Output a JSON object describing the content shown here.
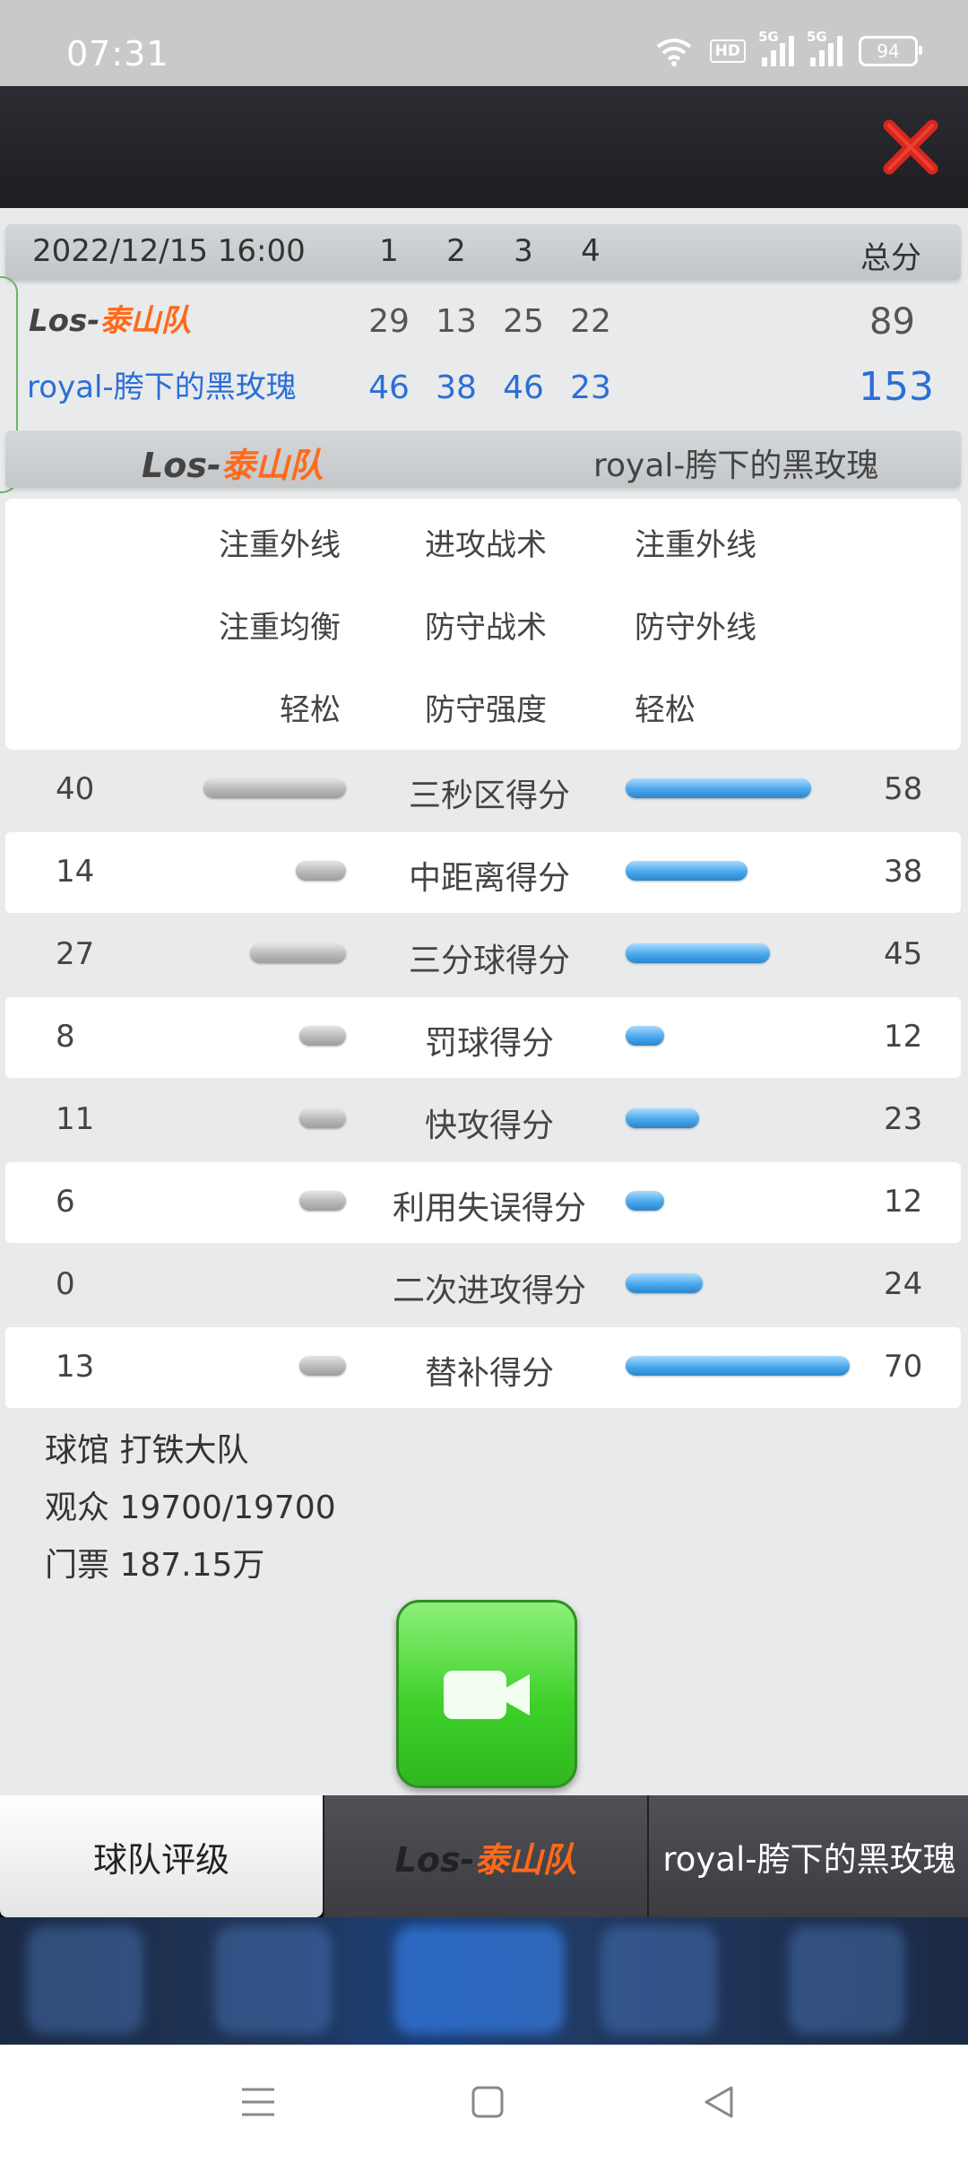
{
  "status_bar": {
    "time": "07:31",
    "hd": "HD",
    "net1": "5G",
    "net2": "5G",
    "battery": "94"
  },
  "scoreboard": {
    "datetime": "2022/12/15 16:00",
    "quarters": [
      "1",
      "2",
      "3",
      "4"
    ],
    "total_label": "总分",
    "team_a": {
      "prefix": "Los-",
      "name": "泰山队",
      "quarters": [
        "29",
        "13",
        "25",
        "22"
      ],
      "total": "89"
    },
    "team_b": {
      "name": "royal-胯下的黑玫瑰",
      "quarters": [
        "46",
        "38",
        "46",
        "23"
      ],
      "total": "153"
    }
  },
  "teams_bar": {
    "team_a_prefix": "Los-",
    "team_a_name": "泰山队",
    "team_b": "royal-胯下的黑玫瑰"
  },
  "tactics": [
    {
      "left": "注重外线",
      "center": "进攻战术",
      "right": "注重外线"
    },
    {
      "left": "注重均衡",
      "center": "防守战术",
      "right": "防守外线"
    },
    {
      "left": "轻松",
      "center": "防守强度",
      "right": "轻松"
    }
  ],
  "stats": [
    {
      "label": "三秒区得分",
      "left": 40,
      "right": 58
    },
    {
      "label": "中距离得分",
      "left": 14,
      "right": 38
    },
    {
      "label": "三分球得分",
      "left": 27,
      "right": 45
    },
    {
      "label": "罚球得分",
      "left": 8,
      "right": 12
    },
    {
      "label": "快攻得分",
      "left": 11,
      "right": 23
    },
    {
      "label": "利用失误得分",
      "left": 6,
      "right": 12
    },
    {
      "label": "二次进攻得分",
      "left": 0,
      "right": 24
    },
    {
      "label": "替补得分",
      "left": 13,
      "right": 70
    }
  ],
  "info": {
    "arena": "球馆 打铁大队",
    "audience": "观众 19700/19700",
    "tickets": "门票 187.15万"
  },
  "tabs": {
    "team_rating": "球队评级",
    "team_a_prefix": "Los-",
    "team_a_name": "泰山队",
    "team_b": "royal-胯下的黑玫瑰"
  },
  "colors": {
    "accent_orange": "#ff6a1a",
    "accent_blue": "#2a6fd6",
    "close_red": "#d8261c",
    "video_green": "#3fd12a"
  }
}
